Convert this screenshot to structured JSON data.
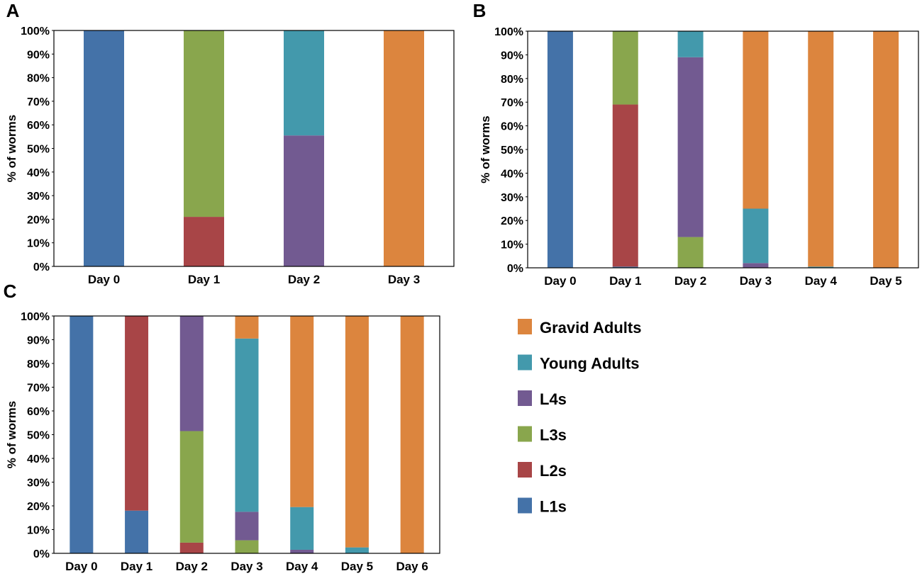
{
  "colors": {
    "L1s": "#4472a8",
    "L2s": "#a84547",
    "L3s": "#89a64d",
    "L4s": "#725a91",
    "Young Adults": "#4399ac",
    "Gravid Adults": "#dc853e"
  },
  "legend": {
    "items": [
      "Gravid Adults",
      "Young Adults",
      "L4s",
      "L3s",
      "L2s",
      "L1s"
    ]
  },
  "chart_data": [
    {
      "panel": "A",
      "type": "bar",
      "stacked": true,
      "ylabel": "% of worms",
      "ylim": [
        0,
        100
      ],
      "yticks": [
        "0%",
        "10%",
        "20%",
        "30%",
        "40%",
        "50%",
        "60%",
        "70%",
        "80%",
        "90%",
        "100%"
      ],
      "categories": [
        "Day 0",
        "Day 1",
        "Day 2",
        "Day 3"
      ],
      "series": [
        {
          "name": "L1s",
          "values": [
            100,
            0,
            0,
            0
          ]
        },
        {
          "name": "L2s",
          "values": [
            0,
            21,
            0,
            0
          ]
        },
        {
          "name": "L3s",
          "values": [
            0,
            79,
            0,
            0
          ]
        },
        {
          "name": "L4s",
          "values": [
            0,
            0,
            55.5,
            0
          ]
        },
        {
          "name": "Young Adults",
          "values": [
            0,
            0,
            44.5,
            0
          ]
        },
        {
          "name": "Gravid Adults",
          "values": [
            0,
            0,
            0,
            100
          ]
        }
      ]
    },
    {
      "panel": "B",
      "type": "bar",
      "stacked": true,
      "ylabel": "% of worms",
      "ylim": [
        0,
        100
      ],
      "yticks": [
        "0%",
        "10%",
        "20%",
        "30%",
        "40%",
        "50%",
        "60%",
        "70%",
        "80%",
        "90%",
        "100%"
      ],
      "categories": [
        "Day 0",
        "Day 1",
        "Day 2",
        "Day 3",
        "Day 4",
        "Day 5"
      ],
      "series": [
        {
          "name": "L1s",
          "values": [
            100,
            0.5,
            0,
            0,
            0,
            0
          ]
        },
        {
          "name": "L2s",
          "values": [
            0,
            68.5,
            0,
            0,
            0,
            0
          ]
        },
        {
          "name": "L3s",
          "values": [
            0,
            31,
            13,
            0,
            0,
            0
          ]
        },
        {
          "name": "L4s",
          "values": [
            0,
            0,
            76,
            2,
            0,
            0
          ]
        },
        {
          "name": "Young Adults",
          "values": [
            0,
            0,
            11,
            23,
            0.5,
            0
          ]
        },
        {
          "name": "Gravid Adults",
          "values": [
            0,
            0,
            0,
            75,
            99.5,
            100
          ]
        }
      ]
    },
    {
      "panel": "C",
      "type": "bar",
      "stacked": true,
      "ylabel": "% of worms",
      "ylim": [
        0,
        100
      ],
      "yticks": [
        "0%",
        "10%",
        "20%",
        "30%",
        "40%",
        "50%",
        "60%",
        "70%",
        "80%",
        "90%",
        "100%"
      ],
      "categories": [
        "Day 0",
        "Day 1",
        "Day 2",
        "Day 3",
        "Day 4",
        "Day 5",
        "Day 6"
      ],
      "series": [
        {
          "name": "L1s",
          "values": [
            100,
            18,
            0,
            0,
            0,
            0,
            0
          ]
        },
        {
          "name": "L2s",
          "values": [
            0,
            82,
            4.5,
            0,
            0,
            0,
            0
          ]
        },
        {
          "name": "L3s",
          "values": [
            0,
            0,
            47,
            5.5,
            0,
            0,
            0
          ]
        },
        {
          "name": "L4s",
          "values": [
            0,
            0,
            48.5,
            12,
            1.5,
            0,
            0
          ]
        },
        {
          "name": "Young Adults",
          "values": [
            0,
            0,
            0,
            73,
            18,
            2.5,
            0
          ]
        },
        {
          "name": "Gravid Adults",
          "values": [
            0,
            0,
            0,
            9.5,
            80.5,
            97.5,
            100
          ]
        }
      ]
    }
  ]
}
